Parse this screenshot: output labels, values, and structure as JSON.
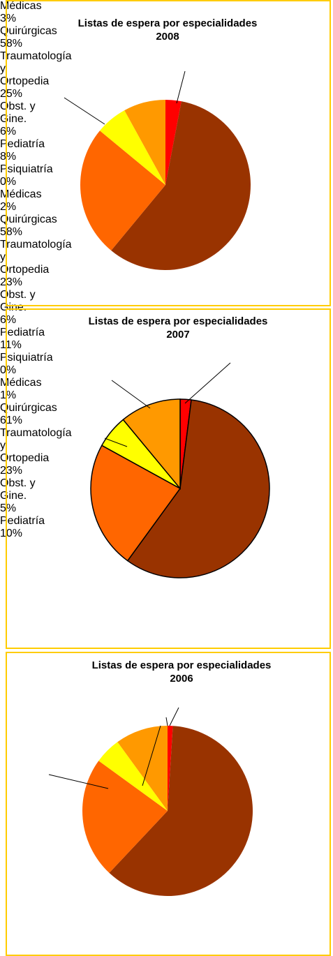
{
  "chart_data": [
    {
      "type": "pie",
      "title": "Listas de espera por especialidades",
      "subtitle": "2008",
      "categories": [
        "Médicas",
        "Quirúrgicas",
        "Traumatología y Ortopedia",
        "Obst. y Gine.",
        "Pediatría"
      ],
      "values": [
        3,
        58,
        25,
        6,
        8
      ],
      "value_labels": [
        "3%",
        "58%",
        "25%",
        "6%",
        "8%"
      ],
      "colors": [
        "#ff0000",
        "#993300",
        "#ff6600",
        "#ffff00",
        "#ff9900"
      ]
    },
    {
      "type": "pie",
      "title": "Listas de espera por especialidades",
      "subtitle": "2007",
      "categories": [
        "Psiquiatría",
        "Médicas",
        "Quirúrgicas",
        "Traumatología y Ortopedia",
        "Obst. y Gine.",
        "Pediatría"
      ],
      "values": [
        0,
        2,
        58,
        23,
        6,
        11
      ],
      "value_labels": [
        "0%",
        "2%",
        "58%",
        "23%",
        "6%",
        "11%"
      ],
      "colors": [
        "#9999ff",
        "#ff0000",
        "#993300",
        "#ff6600",
        "#ffff00",
        "#ff9900"
      ]
    },
    {
      "type": "pie",
      "title": "Listas de espera por especialidades",
      "subtitle": "2006",
      "categories": [
        "Psiquiatría",
        "Médicas",
        "Quirúrgicas",
        "Traumatología y Ortopedia",
        "Obst. y Gine.",
        "Pediatría"
      ],
      "values": [
        0,
        1,
        61,
        23,
        5,
        10
      ],
      "value_labels": [
        "0%",
        "1%",
        "61%",
        "23%",
        "5%",
        "10%"
      ],
      "colors": [
        "#9999ff",
        "#ff0000",
        "#993300",
        "#ff6600",
        "#ffff00",
        "#ff9900"
      ]
    }
  ]
}
